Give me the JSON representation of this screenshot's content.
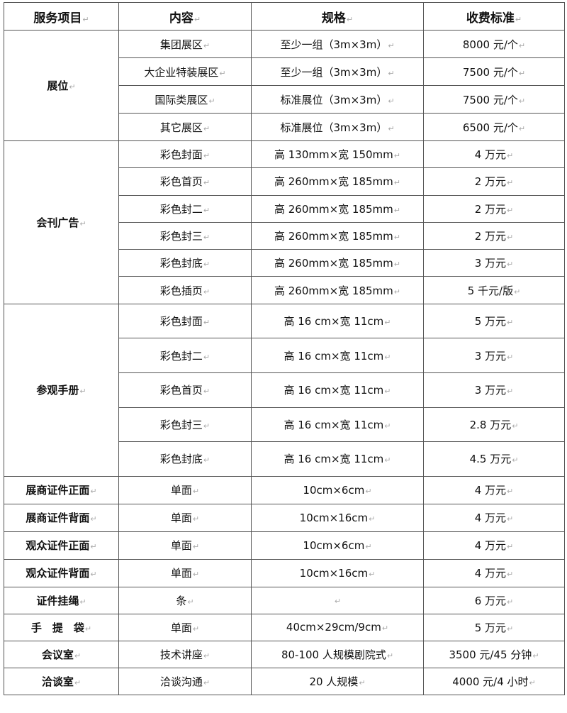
{
  "headers": [
    "服务项目",
    "内容",
    "规格",
    "收费标准"
  ],
  "groups": [
    {
      "category": "展位",
      "row_height": 39,
      "rows": [
        {
          "content": "集团展区",
          "spec": "至少一组（3m×3m）",
          "price": "8000 元/个"
        },
        {
          "content": "大企业特装展区",
          "spec": "至少一组（3m×3m）",
          "price": "7500 元/个"
        },
        {
          "content": "国际类展区",
          "spec": "标准展位（3m×3m）",
          "price": "7500 元/个"
        },
        {
          "content": "其它展区",
          "spec": "标准展位（3m×3m）",
          "price": "6500 元/个"
        }
      ]
    },
    {
      "category": "会刊广告",
      "row_height": 38.3,
      "rows": [
        {
          "content": "彩色封面",
          "spec": "高 130mm×宽 150mm",
          "price": "4 万元"
        },
        {
          "content": "彩色首页",
          "spec": "高 260mm×宽 185mm",
          "price": "2 万元"
        },
        {
          "content": "彩色封二",
          "spec": "高 260mm×宽 185mm",
          "price": "2 万元"
        },
        {
          "content": "彩色封三",
          "spec": "高 260mm×宽 185mm",
          "price": "2 万元"
        },
        {
          "content": "彩色封底",
          "spec": "高 260mm×宽 185mm",
          "price": "3 万元"
        },
        {
          "content": "彩色插页",
          "spec": "高 260mm×宽 185mm",
          "price": "5 千元/版"
        }
      ]
    },
    {
      "category": "参观手册",
      "row_height": 48.6,
      "rows": [
        {
          "content": "彩色封面",
          "spec": "高 16 cm×宽 11cm",
          "price": "5 万元"
        },
        {
          "content": "彩色封二",
          "spec": "高 16 cm×宽 11cm",
          "price": "3 万元"
        },
        {
          "content": "彩色首页",
          "spec": "高 16 cm×宽 11cm",
          "price": "3 万元"
        },
        {
          "content": "彩色封三",
          "spec": "高 16 cm×宽 11cm",
          "price": "2.8 万元"
        },
        {
          "content": "彩色封底",
          "spec": "高 16 cm×宽 11cm",
          "price": "4.5 万元"
        }
      ]
    },
    {
      "category": "展商证件正面",
      "row_height": 39,
      "rows": [
        {
          "content": "单面",
          "spec": "10cm×6cm",
          "price": "4 万元"
        }
      ]
    },
    {
      "category": "展商证件背面",
      "row_height": 39,
      "rows": [
        {
          "content": "单面",
          "spec": "10cm×16cm",
          "price": "4 万元"
        }
      ]
    },
    {
      "category": "观众证件正面",
      "row_height": 39,
      "rows": [
        {
          "content": "单面",
          "spec": "10cm×6cm",
          "price": "4 万元"
        }
      ]
    },
    {
      "category": "观众证件背面",
      "row_height": 39,
      "rows": [
        {
          "content": "单面",
          "spec": "10cm×16cm",
          "price": "4 万元"
        }
      ]
    },
    {
      "category": "证件挂绳",
      "row_height": 38,
      "rows": [
        {
          "content": "条",
          "spec": "",
          "price": "6 万元"
        }
      ]
    },
    {
      "category": "手　提　袋",
      "row_height": 38,
      "rows": [
        {
          "content": "单面",
          "spec": "40cm×29cm/9cm",
          "price": "5 万元"
        }
      ]
    },
    {
      "category": "会议室",
      "row_height": 38,
      "rows": [
        {
          "content": "技术讲座",
          "spec": "80-100 人规模剧院式",
          "price": "3500 元/45 分钟"
        }
      ]
    },
    {
      "category": "洽谈室",
      "row_height": 38,
      "rows": [
        {
          "content": "洽谈沟通",
          "spec": "20 人规模",
          "price": "4000 元/4 小时"
        }
      ]
    }
  ]
}
